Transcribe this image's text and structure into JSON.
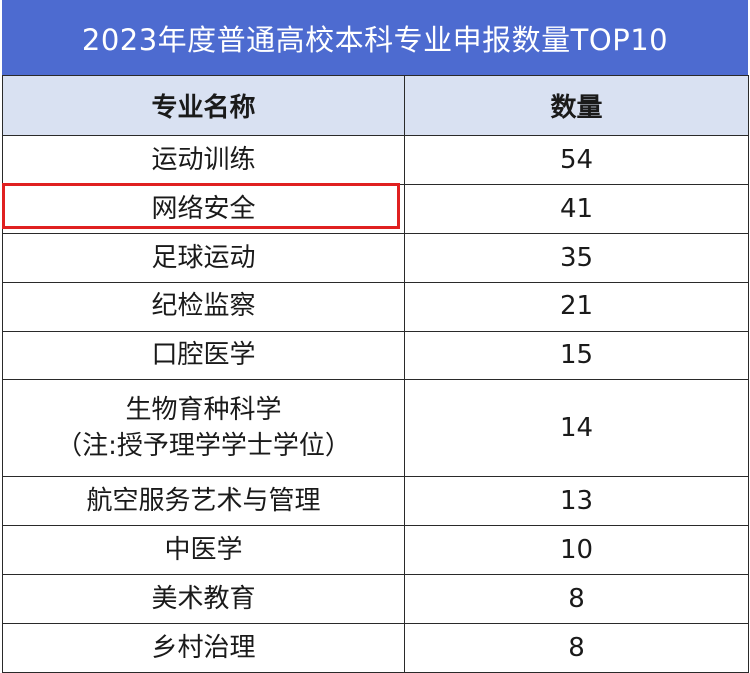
{
  "title": "2023年度普通高校本科专业申报数量TOP10",
  "headers": {
    "major": "专业名称",
    "count": "数量"
  },
  "rows": [
    {
      "lines": [
        "运动训练"
      ],
      "count": "54"
    },
    {
      "lines": [
        "网络安全"
      ],
      "count": "41",
      "highlighted": true
    },
    {
      "lines": [
        "足球运动"
      ],
      "count": "35"
    },
    {
      "lines": [
        "纪检监察"
      ],
      "count": "21"
    },
    {
      "lines": [
        "口腔医学"
      ],
      "count": "15"
    },
    {
      "lines": [
        "生物育种科学",
        "（注:授予理学学士学位）"
      ],
      "count": "14"
    },
    {
      "lines": [
        "航空服务艺术与管理"
      ],
      "count": "13"
    },
    {
      "lines": [
        "中医学"
      ],
      "count": "10"
    },
    {
      "lines": [
        "美术教育"
      ],
      "count": "8"
    },
    {
      "lines": [
        "乡村治理"
      ],
      "count": "8"
    }
  ],
  "colors": {
    "title_bg": "#4d6bd0",
    "header_bg": "#d9e1f2",
    "highlight": "#e02020"
  }
}
